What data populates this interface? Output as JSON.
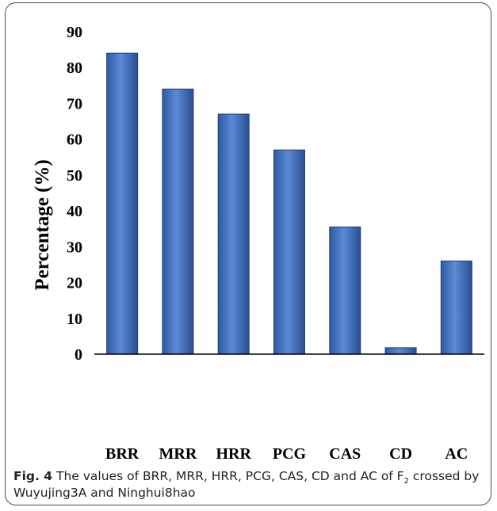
{
  "chart_data": {
    "type": "bar",
    "categories": [
      "BRR",
      "MRR",
      "HRR",
      "PCG",
      "CAS",
      "CD",
      "AC"
    ],
    "values": [
      84,
      74,
      67,
      57,
      35.5,
      1.8,
      26
    ],
    "ylabel": "Percentage (%)",
    "xlabel": "",
    "ylim": [
      0,
      90
    ],
    "yticks": [
      0,
      10,
      20,
      30,
      40,
      50,
      60,
      70,
      80,
      90
    ],
    "bar_color": "#4a79c4",
    "bar_edge_color": "#1f3f7a",
    "grid": false
  },
  "caption": {
    "label": "Fig. 4",
    "text_before_sub": " The values of BRR, MRR, HRR, PCG, CAS, CD and AC of F",
    "subscript": "2",
    "text_after_sub": " crossed by Wuyujing3A and Ninghui8hao"
  }
}
